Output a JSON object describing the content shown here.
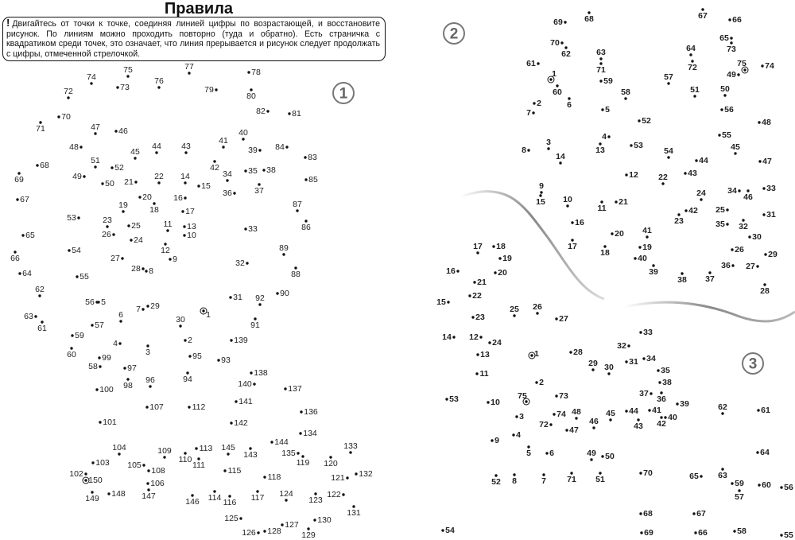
{
  "header": {
    "title": "Правила",
    "rules_mark": "!",
    "rules_text": "Двигайтесь от точки к точке, соединяя линией цифры по возрастающей, и восстановите рисунок. По линиям можно проходить повторно (туда и обратно). Есть страничка с квадратиком среди точек, это означает, что линия прерывается и рисунок следует продолжать с цифры, отмеченной стрелочкой."
  },
  "colors": {
    "text": "#111111",
    "badge": "#666666",
    "swoosh": "#9a9a9a"
  },
  "puzzles": [
    {
      "badge": "1",
      "dots": [
        "75",
        "77",
        "74",
        "73",
        "76",
        "78",
        "72",
        "79",
        "80",
        "82",
        "81",
        "70",
        "71",
        "47",
        "46",
        "40",
        "41",
        "44",
        "43",
        "39",
        "84",
        "48",
        "45",
        "83",
        "68",
        "51",
        "52",
        "42",
        "34",
        "35",
        "38",
        "69",
        "49",
        "50",
        "21",
        "22",
        "14",
        "15",
        "36",
        "37",
        "85",
        "20",
        "16",
        "67",
        "19",
        "18",
        "17",
        "87",
        "53",
        "23",
        "25",
        "11",
        "13",
        "26",
        "10",
        "33",
        "86",
        "65",
        "24",
        "89",
        "54",
        "12",
        "9",
        "27",
        "32",
        "66",
        "28",
        "8",
        "88",
        "64",
        "55",
        "62",
        "31",
        "92",
        "90",
        "56",
        "5",
        "7",
        "29",
        "1",
        "6",
        "30",
        "63",
        "61",
        "57",
        "91",
        "59",
        "4",
        "2",
        "139",
        "3",
        "60",
        "99",
        "95",
        "93",
        "58",
        "97",
        "138",
        "94",
        "96",
        "98",
        "140",
        "137",
        "100",
        "141",
        "107",
        "112",
        "136",
        "101",
        "142",
        "134",
        "144",
        "104",
        "109",
        "113",
        "145",
        "143",
        "133",
        "135",
        "103",
        "105",
        "110",
        "111",
        "119",
        "120",
        "108",
        "115",
        "118",
        "121",
        "132",
        "102",
        "150",
        "106",
        "149",
        "148",
        "147",
        "146",
        "114",
        "116",
        "117",
        "124",
        "122",
        "123",
        "131",
        "125",
        "130",
        "127",
        "126",
        "128",
        "129"
      ]
    },
    {
      "badge": "2",
      "dots": [
        "69",
        "68",
        "67",
        "66",
        "70",
        "62",
        "65",
        "63",
        "64",
        "73",
        "61",
        "75",
        "74",
        "71",
        "72",
        "49",
        "57",
        "1",
        "59",
        "51",
        "50",
        "60",
        "58",
        "6",
        "2",
        "5",
        "56",
        "7",
        "52",
        "48",
        "4",
        "55",
        "3",
        "13",
        "53",
        "54",
        "45",
        "8",
        "14",
        "44",
        "47",
        "12",
        "22",
        "43",
        "9",
        "33",
        "24",
        "34",
        "46",
        "15",
        "10",
        "11",
        "21",
        "42",
        "25",
        "31",
        "23",
        "16",
        "35",
        "32",
        "41",
        "20",
        "30",
        "17",
        "19",
        "18",
        "40",
        "26",
        "29",
        "36",
        "27",
        "39",
        "38",
        "37",
        "28"
      ]
    },
    {
      "badge": "3",
      "dots": [
        "17",
        "18",
        "19",
        "16",
        "20",
        "21",
        "22",
        "15",
        "25",
        "26",
        "27",
        "23",
        "33",
        "14",
        "12",
        "24",
        "32",
        "1",
        "28",
        "34",
        "13",
        "31",
        "29",
        "30",
        "35",
        "11",
        "38",
        "2",
        "37",
        "36",
        "39",
        "62",
        "61",
        "75",
        "73",
        "53",
        "10",
        "74",
        "48",
        "45",
        "44",
        "41",
        "40",
        "3",
        "72",
        "47",
        "46",
        "43",
        "42",
        "4",
        "9",
        "5",
        "6",
        "49",
        "50",
        "64",
        "52",
        "8",
        "7",
        "71",
        "51",
        "70",
        "65",
        "63",
        "59",
        "60",
        "56",
        "57",
        "68",
        "67",
        "54",
        "69",
        "66",
        "58",
        "55"
      ]
    }
  ]
}
